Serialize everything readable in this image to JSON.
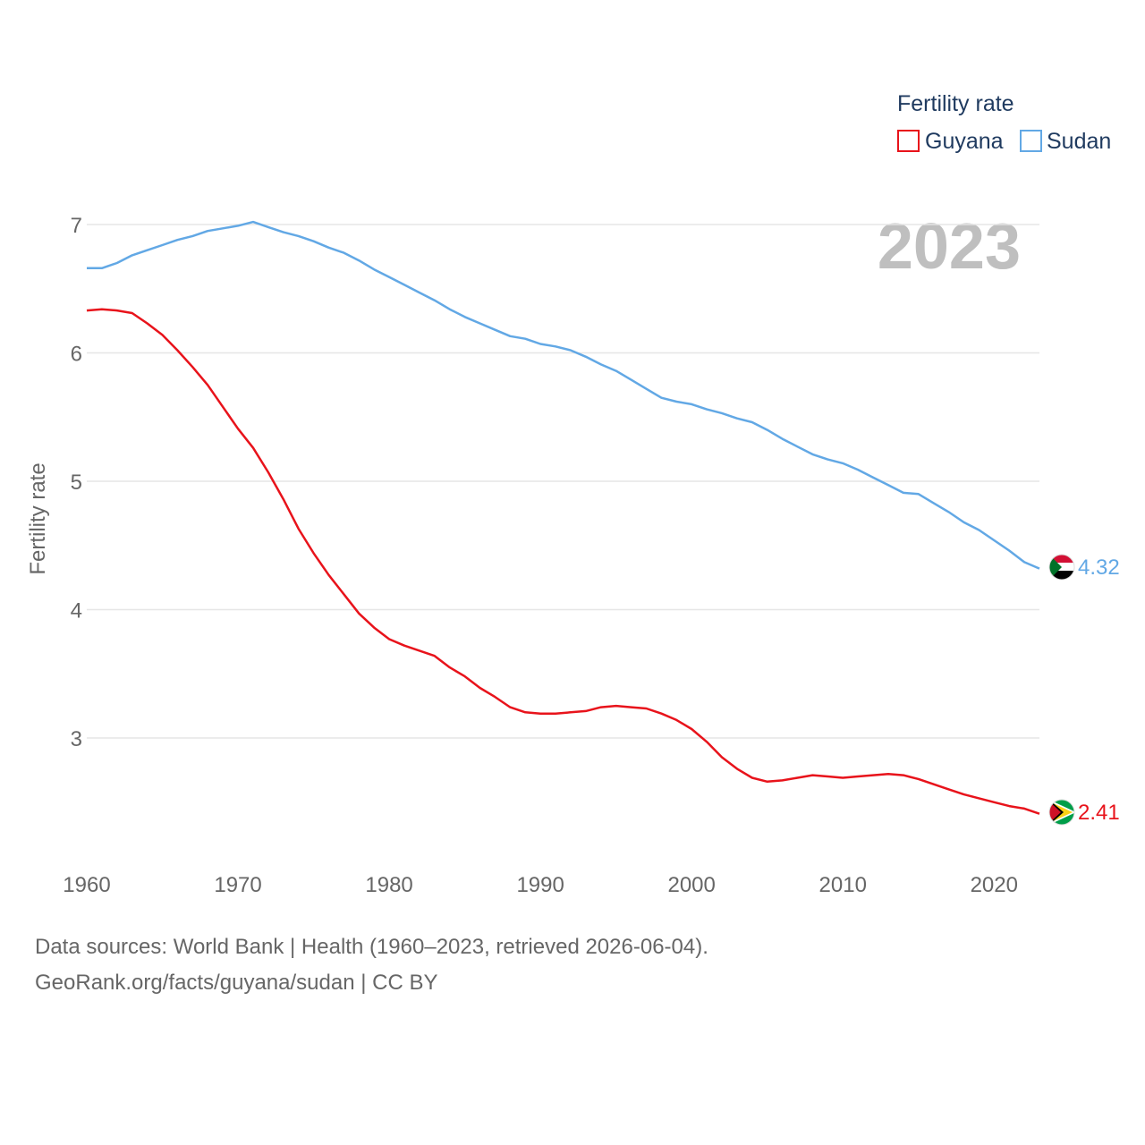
{
  "chart_data": {
    "type": "line",
    "title": "Fertility rate",
    "ylabel": "Fertility rate",
    "xlabel": "",
    "xlim": [
      1960,
      2023
    ],
    "ylim": [
      2.0,
      7.3
    ],
    "xticks": [
      1960,
      1970,
      1980,
      1990,
      2000,
      2010,
      2020
    ],
    "yticks": [
      3,
      4,
      5,
      6,
      7
    ],
    "grid": true,
    "year_label": "2023",
    "x": [
      1960,
      1961,
      1962,
      1963,
      1964,
      1965,
      1966,
      1967,
      1968,
      1969,
      1970,
      1971,
      1972,
      1973,
      1974,
      1975,
      1976,
      1977,
      1978,
      1979,
      1980,
      1981,
      1982,
      1983,
      1984,
      1985,
      1986,
      1987,
      1988,
      1989,
      1990,
      1991,
      1992,
      1993,
      1994,
      1995,
      1996,
      1997,
      1998,
      1999,
      2000,
      2001,
      2002,
      2003,
      2004,
      2005,
      2006,
      2007,
      2008,
      2009,
      2010,
      2011,
      2012,
      2013,
      2014,
      2015,
      2016,
      2017,
      2018,
      2019,
      2020,
      2021,
      2022,
      2023
    ],
    "series": [
      {
        "name": "Guyana",
        "color": "#e8131b",
        "end_label": "2.41",
        "flag": "guyana-flag",
        "values": [
          6.33,
          6.34,
          6.33,
          6.31,
          6.23,
          6.14,
          6.02,
          5.89,
          5.75,
          5.58,
          5.41,
          5.26,
          5.07,
          4.86,
          4.63,
          4.44,
          4.27,
          4.12,
          3.97,
          3.86,
          3.77,
          3.72,
          3.68,
          3.64,
          3.55,
          3.48,
          3.39,
          3.32,
          3.24,
          3.2,
          3.19,
          3.19,
          3.2,
          3.21,
          3.24,
          3.25,
          3.24,
          3.23,
          3.19,
          3.14,
          3.07,
          2.97,
          2.85,
          2.76,
          2.69,
          2.66,
          2.67,
          2.69,
          2.71,
          2.7,
          2.69,
          2.7,
          2.71,
          2.72,
          2.71,
          2.68,
          2.64,
          2.6,
          2.56,
          2.53,
          2.5,
          2.47,
          2.45,
          2.41
        ]
      },
      {
        "name": "Sudan",
        "color": "#62a8e5",
        "end_label": "4.32",
        "flag": "sudan-flag",
        "values": [
          6.66,
          6.66,
          6.7,
          6.76,
          6.8,
          6.84,
          6.88,
          6.91,
          6.95,
          6.97,
          6.99,
          7.02,
          6.98,
          6.94,
          6.91,
          6.87,
          6.82,
          6.78,
          6.72,
          6.65,
          6.59,
          6.53,
          6.47,
          6.41,
          6.34,
          6.28,
          6.23,
          6.18,
          6.13,
          6.11,
          6.07,
          6.05,
          6.02,
          5.97,
          5.91,
          5.86,
          5.79,
          5.72,
          5.65,
          5.62,
          5.6,
          5.56,
          5.53,
          5.49,
          5.46,
          5.4,
          5.33,
          5.27,
          5.21,
          5.17,
          5.14,
          5.09,
          5.03,
          4.97,
          4.91,
          4.9,
          4.83,
          4.76,
          4.68,
          4.62,
          4.54,
          4.46,
          4.37,
          4.32
        ]
      }
    ]
  },
  "legend": {
    "title": "Fertility rate",
    "items": [
      {
        "label": "Guyana",
        "color": "#e8131b"
      },
      {
        "label": "Sudan",
        "color": "#62a8e5"
      }
    ]
  },
  "footer": {
    "sources": "Data sources: World Bank | Health (1960–2023, retrieved 2026-06-04).",
    "credit": "GeoRank.org/facts/guyana/sudan | CC BY"
  }
}
